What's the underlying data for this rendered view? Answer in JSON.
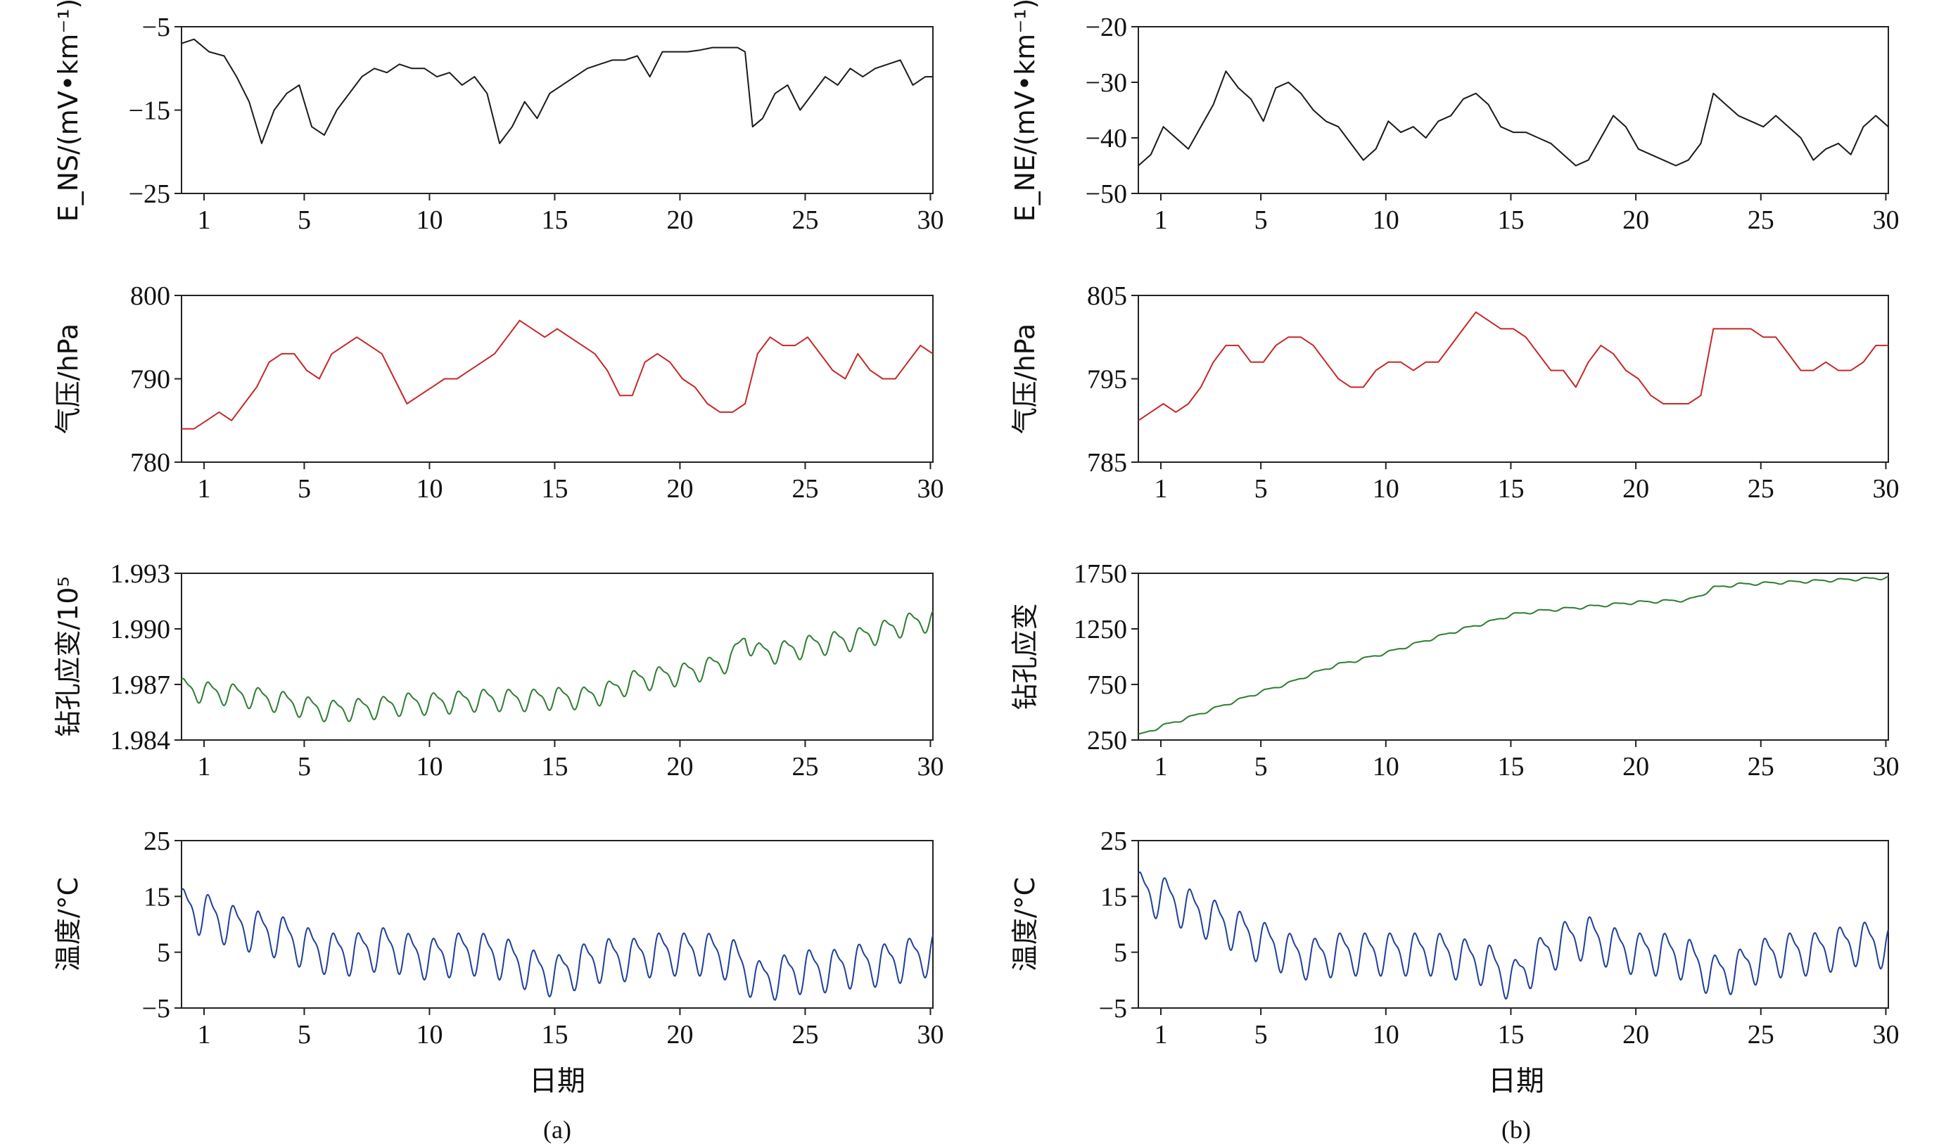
{
  "figure": {
    "captions": [
      "(a)",
      "(b)"
    ],
    "xlabel": "日期"
  },
  "chart_data": [
    {
      "id": "a1",
      "type": "line",
      "column": 0,
      "row": 0,
      "ylabel": "E_NS/(mV•km⁻¹)",
      "ylim": [
        -25,
        -5
      ],
      "yticks": [
        -25,
        -15,
        -5
      ],
      "ytick_labels": [
        "−25",
        "−15",
        "−5"
      ],
      "xlim": [
        0.1,
        30.1
      ],
      "xticks": [
        1,
        5,
        10,
        15,
        20,
        25,
        30
      ],
      "xtick_labels": [
        "1",
        "5",
        "10",
        "15",
        "20",
        "25",
        "30"
      ],
      "color": "#1a1a1a",
      "series": [
        {
          "x": [
            0.1,
            0.6,
            1.2,
            1.8,
            2.3,
            2.8,
            3.3,
            3.8,
            4.3,
            4.8,
            5.3,
            5.8,
            6.3,
            6.8,
            7.3,
            7.8,
            8.3,
            8.8,
            9.3,
            9.8,
            10.3,
            10.8,
            11.3,
            11.8,
            12.3,
            12.8,
            13.3,
            13.8,
            14.3,
            14.8,
            15.3,
            15.8,
            16.3,
            16.8,
            17.3,
            17.8,
            18.3,
            18.8,
            19.3,
            19.8,
            20.3,
            20.8,
            21.3,
            21.8,
            22.3,
            22.6,
            22.9,
            23.3,
            23.8,
            24.3,
            24.8,
            25.3,
            25.8,
            26.3,
            26.8,
            27.3,
            27.8,
            28.3,
            28.8,
            29.3,
            29.8,
            30.1
          ],
          "y": [
            -7,
            -6.5,
            -8,
            -8.5,
            -11,
            -14,
            -19,
            -15,
            -13,
            -12,
            -17,
            -18,
            -15,
            -13,
            -11,
            -10,
            -10.5,
            -9.5,
            -10,
            -10,
            -11,
            -10.5,
            -12,
            -11,
            -13,
            -19,
            -17,
            -14,
            -16,
            -13,
            -12,
            -11,
            -10,
            -9.5,
            -9,
            -9,
            -8.5,
            -11,
            -8,
            -8,
            -8,
            -7.8,
            -7.5,
            -7.5,
            -7.5,
            -8,
            -17,
            -16,
            -13,
            -12,
            -15,
            -13,
            -11,
            -12,
            -10,
            -11,
            -10,
            -9.5,
            -9,
            -12,
            -11,
            -11
          ]
        }
      ]
    },
    {
      "id": "a2",
      "type": "line",
      "column": 0,
      "row": 1,
      "ylabel": "气压/hPa",
      "ylim": [
        780,
        800
      ],
      "yticks": [
        780,
        790,
        800
      ],
      "ytick_labels": [
        "780",
        "790",
        "800"
      ],
      "xlim": [
        0.1,
        30.1
      ],
      "xticks": [
        1,
        5,
        10,
        15,
        20,
        25,
        30
      ],
      "xtick_labels": [
        "1",
        "5",
        "10",
        "15",
        "20",
        "25",
        "30"
      ],
      "color": "#c62828",
      "series": [
        {
          "x": [
            0.1,
            0.6,
            1.1,
            1.6,
            2.1,
            2.6,
            3.1,
            3.6,
            4.1,
            4.6,
            5.1,
            5.6,
            6.1,
            6.6,
            7.1,
            7.6,
            8.1,
            8.6,
            9.1,
            9.6,
            10.1,
            10.6,
            11.1,
            11.6,
            12.1,
            12.6,
            13.1,
            13.6,
            14.1,
            14.6,
            15.1,
            15.6,
            16.1,
            16.6,
            17.1,
            17.6,
            18.1,
            18.6,
            19.1,
            19.6,
            20.1,
            20.6,
            21.1,
            21.6,
            22.1,
            22.6,
            23.1,
            23.6,
            24.1,
            24.6,
            25.1,
            25.6,
            26.1,
            26.6,
            27.1,
            27.6,
            28.1,
            28.6,
            29.1,
            29.6,
            30.1
          ],
          "y": [
            784,
            784,
            785,
            786,
            785,
            787,
            789,
            792,
            793,
            793,
            791,
            790,
            793,
            794,
            795,
            794,
            793,
            790,
            787,
            788,
            789,
            790,
            790,
            791,
            792,
            793,
            795,
            797,
            796,
            795,
            796,
            795,
            794,
            793,
            791,
            788,
            788,
            792,
            793,
            792,
            790,
            789,
            787,
            786,
            786,
            787,
            793,
            795,
            794,
            794,
            795,
            793,
            791,
            790,
            793,
            791,
            790,
            790,
            792,
            794,
            793
          ]
        }
      ]
    },
    {
      "id": "a3",
      "type": "line",
      "column": 0,
      "row": 2,
      "ylabel": "钻孔应变/10⁵",
      "ylim": [
        1.984,
        1.993
      ],
      "yticks": [
        1.984,
        1.987,
        1.99,
        1.993
      ],
      "ytick_labels": [
        "1.984",
        "1.987",
        "1.990",
        "1.993"
      ],
      "xlim": [
        0.1,
        30.1
      ],
      "xticks": [
        1,
        5,
        10,
        15,
        20,
        25,
        30
      ],
      "xtick_labels": [
        "1",
        "5",
        "10",
        "15",
        "20",
        "25",
        "30"
      ],
      "color": "#2e7d32",
      "series": [
        {
          "x": [
            0.1,
            1.1,
            2.1,
            3.1,
            4.1,
            5.1,
            6.1,
            7.1,
            8.1,
            9.1,
            10.1,
            11.1,
            12.1,
            13.1,
            14.1,
            15.1,
            16.1,
            17.1,
            18.1,
            19.1,
            20.1,
            21.1,
            22.1,
            22.6,
            23.1,
            24.1,
            25.1,
            26.1,
            27.1,
            28.1,
            29.1,
            30.1
          ],
          "y": [
            1.9868,
            1.9866,
            1.9865,
            1.9863,
            1.9861,
            1.9858,
            1.9856,
            1.9857,
            1.9858,
            1.986,
            1.986,
            1.9861,
            1.9862,
            1.9862,
            1.9862,
            1.9863,
            1.9863,
            1.9866,
            1.9872,
            1.9874,
            1.9876,
            1.9879,
            1.9884,
            1.9896,
            1.9887,
            1.9888,
            1.9891,
            1.9893,
            1.9895,
            1.9899,
            1.9903,
            1.9905
          ],
          "amplitude": 0.0007,
          "period": 1
        }
      ]
    },
    {
      "id": "a4",
      "type": "line",
      "column": 0,
      "row": 3,
      "ylabel": "温度/°C",
      "ylim": [
        -5,
        25
      ],
      "yticks": [
        -5,
        5,
        15,
        25
      ],
      "ytick_labels": [
        "−5",
        "5",
        "15",
        "25"
      ],
      "xlim": [
        0.1,
        30.1
      ],
      "xticks": [
        1,
        5,
        10,
        15,
        20,
        25,
        30
      ],
      "xtick_labels": [
        "1",
        "5",
        "10",
        "15",
        "20",
        "25",
        "30"
      ],
      "color": "#1f3f9a",
      "series": [
        {
          "x": [
            0.1,
            1.1,
            2.1,
            3.1,
            4.1,
            5.1,
            6.1,
            7.1,
            8.1,
            9.1,
            10.1,
            11.1,
            12.1,
            13.1,
            14.1,
            15.1,
            16.1,
            17.1,
            18.1,
            19.1,
            20.1,
            21.1,
            22.1,
            23.1,
            24.1,
            25.1,
            26.1,
            27.1,
            28.1,
            29.1,
            30.1
          ],
          "y": [
            13,
            12,
            10,
            9,
            8,
            6,
            5,
            5,
            6,
            5,
            4,
            5,
            5,
            4,
            2,
            1,
            3,
            4,
            4,
            5,
            5,
            5,
            4,
            0,
            1,
            2,
            2,
            3,
            3,
            4,
            5
          ],
          "amplitude": 4.5,
          "period": 1
        }
      ]
    },
    {
      "id": "b1",
      "type": "line",
      "column": 1,
      "row": 0,
      "ylabel": "E_NE/(mV•km⁻¹)",
      "ylim": [
        -50,
        -20
      ],
      "yticks": [
        -50,
        -40,
        -30,
        -20
      ],
      "ytick_labels": [
        "−50",
        "−40",
        "−30",
        "−20"
      ],
      "xlim": [
        0.1,
        30.1
      ],
      "xticks": [
        1,
        5,
        10,
        15,
        20,
        25,
        30
      ],
      "xtick_labels": [
        "1",
        "5",
        "10",
        "15",
        "20",
        "25",
        "30"
      ],
      "color": "#1a1a1a",
      "series": [
        {
          "x": [
            0.1,
            0.6,
            1.1,
            1.6,
            2.1,
            2.6,
            3.1,
            3.6,
            4.1,
            4.6,
            5.1,
            5.6,
            6.1,
            6.6,
            7.1,
            7.6,
            8.1,
            8.6,
            9.1,
            9.6,
            10.1,
            10.6,
            11.1,
            11.6,
            12.1,
            12.6,
            13.1,
            13.6,
            14.1,
            14.6,
            15.1,
            15.6,
            16.1,
            16.6,
            17.1,
            17.6,
            18.1,
            18.6,
            19.1,
            19.6,
            20.1,
            20.6,
            21.1,
            21.6,
            22.1,
            22.6,
            23.1,
            23.6,
            24.1,
            24.6,
            25.1,
            25.6,
            26.1,
            26.6,
            27.1,
            27.6,
            28.1,
            28.6,
            29.1,
            29.6,
            30.1
          ],
          "y": [
            -45,
            -43,
            -38,
            -40,
            -42,
            -38,
            -34,
            -28,
            -31,
            -33,
            -37,
            -31,
            -30,
            -32,
            -35,
            -37,
            -38,
            -41,
            -44,
            -42,
            -37,
            -39,
            -38,
            -40,
            -37,
            -36,
            -33,
            -32,
            -34,
            -38,
            -39,
            -39,
            -40,
            -41,
            -43,
            -45,
            -44,
            -40,
            -36,
            -38,
            -42,
            -43,
            -44,
            -45,
            -44,
            -41,
            -32,
            -34,
            -36,
            -37,
            -38,
            -36,
            -38,
            -40,
            -44,
            -42,
            -41,
            -43,
            -38,
            -36,
            -38
          ]
        }
      ]
    },
    {
      "id": "b2",
      "type": "line",
      "column": 1,
      "row": 1,
      "ylabel": "气压/hPa",
      "ylim": [
        785,
        805
      ],
      "yticks": [
        785,
        795,
        805
      ],
      "ytick_labels": [
        "785",
        "795",
        "805"
      ],
      "xlim": [
        0.1,
        30.1
      ],
      "xticks": [
        1,
        5,
        10,
        15,
        20,
        25,
        30
      ],
      "xtick_labels": [
        "1",
        "5",
        "10",
        "15",
        "20",
        "25",
        "30"
      ],
      "color": "#c62828",
      "series": [
        {
          "x": [
            0.1,
            0.6,
            1.1,
            1.6,
            2.1,
            2.6,
            3.1,
            3.6,
            4.1,
            4.6,
            5.1,
            5.6,
            6.1,
            6.6,
            7.1,
            7.6,
            8.1,
            8.6,
            9.1,
            9.6,
            10.1,
            10.6,
            11.1,
            11.6,
            12.1,
            12.6,
            13.1,
            13.6,
            14.1,
            14.6,
            15.1,
            15.6,
            16.1,
            16.6,
            17.1,
            17.6,
            18.1,
            18.6,
            19.1,
            19.6,
            20.1,
            20.6,
            21.1,
            21.6,
            22.1,
            22.6,
            23.1,
            23.6,
            24.1,
            24.6,
            25.1,
            25.6,
            26.1,
            26.6,
            27.1,
            27.6,
            28.1,
            28.6,
            29.1,
            29.6,
            30.1
          ],
          "y": [
            790,
            791,
            792,
            791,
            792,
            794,
            797,
            799,
            799,
            797,
            797,
            799,
            800,
            800,
            799,
            797,
            795,
            794,
            794,
            796,
            797,
            797,
            796,
            797,
            797,
            799,
            801,
            803,
            802,
            801,
            801,
            800,
            798,
            796,
            796,
            794,
            797,
            799,
            798,
            796,
            795,
            793,
            792,
            792,
            792,
            793,
            801,
            801,
            801,
            801,
            800,
            800,
            798,
            796,
            796,
            797,
            796,
            796,
            797,
            799,
            799
          ]
        }
      ]
    },
    {
      "id": "b3",
      "type": "line",
      "column": 1,
      "row": 2,
      "ylabel": "钻孔应变",
      "ylim": [
        250,
        1750
      ],
      "yticks": [
        250,
        750,
        1250,
        1750
      ],
      "ytick_labels": [
        "250",
        "750",
        "1250",
        "1750"
      ],
      "xlim": [
        0.1,
        30.1
      ],
      "xticks": [
        1,
        5,
        10,
        15,
        20,
        25,
        30
      ],
      "xtick_labels": [
        "1",
        "5",
        "10",
        "15",
        "20",
        "25",
        "30"
      ],
      "color": "#2e7d32",
      "series": [
        {
          "x": [
            0.1,
            1.1,
            2.1,
            3.1,
            4.1,
            5.1,
            6.1,
            7.1,
            8.1,
            9.1,
            10.1,
            11.1,
            12.1,
            13.1,
            14.1,
            15.1,
            16.1,
            17.1,
            18.1,
            19.1,
            20.1,
            21.1,
            22.1,
            22.6,
            23.1,
            24.1,
            25.1,
            26.1,
            27.1,
            28.1,
            29.1,
            30.1
          ],
          "y": [
            290,
            380,
            450,
            530,
            610,
            690,
            760,
            850,
            930,
            980,
            1040,
            1110,
            1180,
            1250,
            1310,
            1380,
            1410,
            1430,
            1450,
            1470,
            1490,
            1500,
            1510,
            1550,
            1620,
            1650,
            1660,
            1670,
            1680,
            1690,
            1700,
            1710
          ],
          "amplitude": 15,
          "period": 1
        }
      ]
    },
    {
      "id": "b4",
      "type": "line",
      "column": 1,
      "row": 3,
      "ylabel": "温度/°C",
      "ylim": [
        -5,
        25
      ],
      "yticks": [
        -5,
        5,
        15,
        25
      ],
      "ytick_labels": [
        "−5",
        "5",
        "15",
        "25"
      ],
      "xlim": [
        0.1,
        30.1
      ],
      "xticks": [
        1,
        5,
        10,
        15,
        20,
        25,
        30
      ],
      "xtick_labels": [
        "1",
        "5",
        "10",
        "15",
        "20",
        "25",
        "30"
      ],
      "color": "#1f3f9a",
      "series": [
        {
          "x": [
            0.1,
            1.1,
            2.1,
            3.1,
            4.1,
            5.1,
            6.1,
            7.1,
            8.1,
            9.1,
            10.1,
            11.1,
            12.1,
            13.1,
            14.1,
            15.1,
            16.1,
            17.1,
            18.1,
            19.1,
            20.1,
            21.1,
            22.1,
            23.1,
            24.1,
            25.1,
            26.1,
            27.1,
            28.1,
            29.1,
            30.1
          ],
          "y": [
            16,
            15,
            13,
            11,
            9,
            7,
            5,
            4,
            5,
            5,
            5,
            5,
            5,
            4,
            3,
            0,
            4,
            7,
            8,
            6,
            5,
            5,
            4,
            1,
            2,
            4,
            5,
            5,
            6,
            7,
            6
          ],
          "amplitude": 4.5,
          "period": 1
        }
      ]
    }
  ]
}
